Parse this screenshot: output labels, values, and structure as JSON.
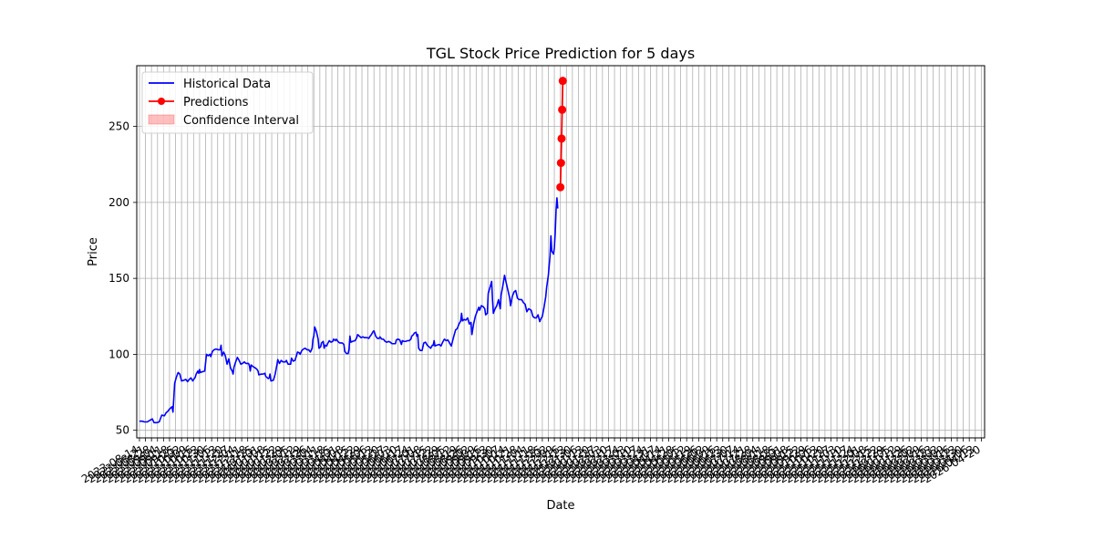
{
  "chart_data": {
    "type": "line",
    "title": "TGL Stock Price Prediction for 5 days",
    "xlabel": "Date",
    "ylabel": "Price",
    "ylim": [
      45,
      290
    ],
    "yticks": [
      50,
      100,
      150,
      200,
      250
    ],
    "grid": true,
    "legend_position": "top-left",
    "series": [
      {
        "name": "Historical Data",
        "color": "#0000ff",
        "points": [
          [
            0,
            56
          ],
          [
            3,
            56
          ],
          [
            6,
            55.5
          ],
          [
            9,
            55.5
          ],
          [
            12,
            56.5
          ],
          [
            15,
            57.5
          ],
          [
            17,
            55
          ],
          [
            20,
            55
          ],
          [
            23,
            55.5
          ],
          [
            24,
            57
          ],
          [
            26,
            60
          ],
          [
            29,
            59.5
          ],
          [
            31,
            61.5
          ],
          [
            33,
            62.5
          ],
          [
            35,
            64
          ],
          [
            38,
            65.5
          ],
          [
            39,
            62
          ],
          [
            41,
            81
          ],
          [
            43,
            85
          ],
          [
            45,
            88
          ],
          [
            47,
            87
          ],
          [
            49,
            82.5
          ],
          [
            52,
            83
          ],
          [
            54,
            83.5
          ],
          [
            56,
            82
          ],
          [
            58,
            83.5
          ],
          [
            60,
            84.5
          ],
          [
            62,
            82.5
          ],
          [
            65,
            85
          ],
          [
            66,
            87
          ],
          [
            68,
            89
          ],
          [
            69,
            87.5
          ],
          [
            70,
            90
          ],
          [
            71,
            88
          ],
          [
            73,
            88.5
          ],
          [
            76,
            89
          ],
          [
            78,
            100
          ],
          [
            80,
            99
          ],
          [
            82,
            100
          ],
          [
            83,
            98.5
          ],
          [
            85,
            102
          ],
          [
            87,
            103
          ],
          [
            89,
            103.5
          ],
          [
            92,
            103
          ],
          [
            94,
            103
          ],
          [
            95,
            106
          ],
          [
            96,
            99
          ],
          [
            98,
            101.5
          ],
          [
            100,
            99
          ],
          [
            102,
            93.5
          ],
          [
            104,
            97
          ],
          [
            106,
            91
          ],
          [
            108,
            89
          ],
          [
            109,
            87
          ],
          [
            110,
            91.5
          ],
          [
            112,
            95
          ],
          [
            114,
            98
          ],
          [
            116,
            96
          ],
          [
            118,
            93.5
          ],
          [
            120,
            94
          ],
          [
            122,
            95
          ],
          [
            124,
            94
          ],
          [
            127,
            94
          ],
          [
            128,
            92.5
          ],
          [
            129,
            89
          ],
          [
            130,
            93
          ],
          [
            132,
            92
          ],
          [
            135,
            91
          ],
          [
            137,
            90
          ],
          [
            138,
            89
          ],
          [
            139,
            86.5
          ],
          [
            142,
            87
          ],
          [
            144,
            87
          ],
          [
            146,
            87.5
          ],
          [
            147,
            85.5
          ],
          [
            150,
            84
          ],
          [
            151,
            84.5
          ],
          [
            152,
            87
          ],
          [
            153,
            82.5
          ],
          [
            156,
            83
          ],
          [
            158,
            87
          ],
          [
            160,
            93
          ],
          [
            161,
            96.5
          ],
          [
            163,
            94
          ],
          [
            165,
            96
          ],
          [
            167,
            95
          ],
          [
            170,
            95
          ],
          [
            171,
            96
          ],
          [
            173,
            93.5
          ],
          [
            176,
            93.5
          ],
          [
            177,
            97.5
          ],
          [
            179,
            95.5
          ],
          [
            181,
            96
          ],
          [
            183,
            99.5
          ],
          [
            184,
            101.5
          ],
          [
            186,
            101
          ],
          [
            187,
            100
          ],
          [
            189,
            102.5
          ],
          [
            191,
            103.5
          ],
          [
            193,
            104
          ],
          [
            195,
            103
          ],
          [
            197,
            103
          ],
          [
            199,
            101.5
          ],
          [
            201,
            104
          ],
          [
            202,
            110
          ],
          [
            203,
            112
          ],
          [
            204,
            118
          ],
          [
            206,
            115
          ],
          [
            208,
            110
          ],
          [
            209,
            104
          ],
          [
            211,
            105
          ],
          [
            212,
            107.5
          ],
          [
            214,
            108.5
          ],
          [
            215,
            104
          ],
          [
            216,
            106
          ],
          [
            218,
            105.5
          ],
          [
            219,
            107
          ],
          [
            221,
            109
          ],
          [
            223,
            108
          ],
          [
            225,
            108.5
          ],
          [
            226,
            110
          ],
          [
            228,
            109
          ],
          [
            229,
            110
          ],
          [
            231,
            108.5
          ],
          [
            233,
            107.5
          ],
          [
            236,
            107.5
          ],
          [
            238,
            106.5
          ],
          [
            239,
            102
          ],
          [
            241,
            100.5
          ],
          [
            243,
            100.5
          ],
          [
            244,
            103.5
          ],
          [
            245,
            112
          ],
          [
            246,
            108
          ],
          [
            248,
            108.5
          ],
          [
            251,
            109
          ],
          [
            253,
            111
          ],
          [
            254,
            113
          ],
          [
            256,
            112
          ],
          [
            258,
            111
          ],
          [
            260,
            111.5
          ],
          [
            262,
            111
          ],
          [
            265,
            111
          ],
          [
            267,
            110.5
          ],
          [
            268,
            111.5
          ],
          [
            270,
            113
          ],
          [
            272,
            115
          ],
          [
            273,
            115.5
          ],
          [
            275,
            112
          ],
          [
            277,
            110.5
          ],
          [
            279,
            110.5
          ],
          [
            280,
            111.5
          ],
          [
            282,
            110
          ],
          [
            284,
            110
          ],
          [
            286,
            108.5
          ],
          [
            288,
            108
          ],
          [
            290,
            108.5
          ],
          [
            292,
            108
          ],
          [
            294,
            107
          ],
          [
            296,
            107
          ],
          [
            298,
            107
          ],
          [
            299,
            109.5
          ],
          [
            301,
            110
          ],
          [
            303,
            109.5
          ],
          [
            305,
            106.5
          ],
          [
            306,
            109
          ],
          [
            308,
            108.5
          ],
          [
            310,
            108.5
          ],
          [
            312,
            109
          ],
          [
            314,
            109
          ],
          [
            316,
            110
          ],
          [
            317,
            112
          ],
          [
            319,
            113
          ],
          [
            320,
            114
          ],
          [
            322,
            114.5
          ],
          [
            323,
            112
          ],
          [
            324,
            113
          ],
          [
            325,
            104
          ],
          [
            327,
            102.5
          ],
          [
            329,
            102.5
          ],
          [
            331,
            107.5
          ],
          [
            333,
            108
          ],
          [
            335,
            106
          ],
          [
            337,
            105
          ],
          [
            339,
            104
          ],
          [
            341,
            106
          ],
          [
            342,
            106
          ],
          [
            343,
            109
          ],
          [
            344,
            105.5
          ],
          [
            346,
            106
          ],
          [
            349,
            106.5
          ],
          [
            351,
            105.5
          ],
          [
            353,
            108
          ],
          [
            355,
            110
          ],
          [
            357,
            109
          ],
          [
            359,
            109.5
          ],
          [
            361,
            107.5
          ],
          [
            363,
            105.5
          ],
          [
            366,
            112
          ],
          [
            368,
            116
          ],
          [
            370,
            117
          ],
          [
            372,
            120
          ],
          [
            374,
            122
          ],
          [
            375,
            127
          ],
          [
            376,
            122
          ],
          [
            378,
            123
          ],
          [
            380,
            122.5
          ],
          [
            382,
            124
          ],
          [
            384,
            120
          ],
          [
            386,
            121
          ],
          [
            387,
            113
          ],
          [
            389,
            120
          ],
          [
            391,
            125
          ],
          [
            393,
            128
          ],
          [
            395,
            131
          ],
          [
            396,
            129
          ],
          [
            398,
            132
          ],
          [
            400,
            131.5
          ],
          [
            402,
            130
          ],
          [
            403,
            126
          ],
          [
            405,
            127
          ],
          [
            406,
            140
          ],
          [
            408,
            144
          ],
          [
            410,
            148
          ],
          [
            411,
            136
          ],
          [
            412,
            127
          ],
          [
            414,
            130
          ],
          [
            416,
            132
          ],
          [
            417,
            134
          ],
          [
            418,
            136
          ],
          [
            420,
            130
          ],
          [
            421,
            139
          ],
          [
            423,
            145
          ],
          [
            425,
            152
          ],
          [
            427,
            147
          ],
          [
            429,
            142
          ],
          [
            431,
            137
          ],
          [
            432,
            132
          ],
          [
            434,
            138
          ],
          [
            436,
            141
          ],
          [
            438,
            142
          ],
          [
            440,
            137
          ],
          [
            442,
            136
          ],
          [
            445,
            136
          ],
          [
            447,
            134
          ],
          [
            449,
            133
          ],
          [
            451,
            128
          ],
          [
            453,
            130
          ],
          [
            456,
            129
          ],
          [
            458,
            125
          ],
          [
            460,
            124
          ],
          [
            462,
            124
          ],
          [
            464,
            126
          ],
          [
            466,
            121.5
          ],
          [
            467,
            123
          ],
          [
            469,
            125
          ],
          [
            471,
            131
          ],
          [
            473,
            138
          ],
          [
            474,
            144
          ],
          [
            476,
            152
          ],
          [
            478,
            165
          ],
          [
            479,
            178
          ],
          [
            480,
            168
          ],
          [
            482,
            166
          ],
          [
            483,
            170
          ],
          [
            484,
            180
          ],
          [
            485,
            195
          ],
          [
            486,
            203
          ],
          [
            487,
            196
          ]
        ]
      },
      {
        "name": "Predictions",
        "color": "#ff0000",
        "points": [
          [
            490,
            210
          ],
          [
            490.7,
            226
          ],
          [
            491.4,
            242
          ],
          [
            492.1,
            261
          ],
          [
            492.8,
            280
          ]
        ]
      },
      {
        "name": "Confidence Interval",
        "color": "#ffbfbf"
      }
    ],
    "x_tick_labels": [
      "2023-08-14",
      "2023-08-21",
      "2023-08-28",
      "2023-09-04",
      "2023-09-11",
      "2023-09-18",
      "2023-09-25",
      "2023-10-02",
      "2023-10-09",
      "2023-10-16",
      "2023-10-23",
      "2023-10-30",
      "2023-11-06",
      "2023-11-13",
      "2023-11-20",
      "2023-11-27",
      "2023-12-04",
      "2023-12-11",
      "2023-12-18",
      "2023-12-25",
      "2024-01-01",
      "2024-01-08",
      "2024-01-15",
      "2024-01-22",
      "2024-01-29",
      "2024-02-05",
      "2024-02-12",
      "2024-02-19",
      "2024-02-26",
      "2024-03-04",
      "2024-03-11",
      "2024-03-18",
      "2024-03-25",
      "2024-04-01",
      "2024-04-08",
      "2024-04-15",
      "2024-04-22",
      "2024-04-29",
      "2024-05-06",
      "2024-05-13",
      "2024-05-20",
      "2024-05-27",
      "2024-06-03",
      "2024-06-10",
      "2024-06-17",
      "2024-06-24",
      "2024-07-01",
      "2024-07-08",
      "2024-07-15",
      "2024-07-22",
      "2024-07-29",
      "2024-08-05",
      "2024-08-12",
      "2024-08-19",
      "2024-08-26",
      "2024-09-02",
      "2024-09-09",
      "2024-09-16",
      "2024-09-23",
      "2024-09-30",
      "2024-10-07",
      "2024-10-14",
      "2024-10-21",
      "2024-10-28",
      "2024-11-04",
      "2024-11-11",
      "2024-11-18",
      "2024-11-25",
      "2024-12-02",
      "2024-12-09",
      "2024-12-16",
      "2024-12-23",
      "2024-12-30",
      "2025-01-06",
      "2025-01-13",
      "2025-01-20",
      "2025-01-27",
      "2025-02-03",
      "2025-02-10",
      "2025-02-17",
      "2025-02-24",
      "2025-03-03",
      "2025-03-10",
      "2025-03-17",
      "2025-03-24",
      "2025-03-31",
      "2025-04-07",
      "2025-04-14",
      "2025-04-21",
      "2025-04-28",
      "2025-05-05",
      "2025-05-12",
      "2025-05-19",
      "2025-05-26",
      "2025-06-02",
      "2025-06-09",
      "2025-06-16",
      "2025-06-23",
      "2025-06-30",
      "2025-07-07",
      "2025-07-14",
      "2025-07-21",
      "2025-07-28",
      "2025-08-04",
      "2025-08-11",
      "2025-08-18",
      "2025-08-25",
      "2025-09-01",
      "2025-09-08",
      "2025-09-15",
      "2025-09-22",
      "2025-09-29",
      "2025-10-06",
      "2025-10-13",
      "2025-10-20",
      "2025-10-27",
      "2025-11-03",
      "2025-11-10",
      "2025-11-17",
      "2025-11-24",
      "2025-12-01",
      "2025-12-08",
      "2025-12-15",
      "2025-12-22",
      "2025-12-29",
      "2026-01-05",
      "2026-01-12",
      "2026-01-19",
      "2026-01-26",
      "2026-02-02",
      "2026-02-09",
      "2026-02-16",
      "2026-02-23",
      "2026-03-02",
      "2026-03-09",
      "2026-03-16",
      "2026-03-23",
      "2026-03-30",
      "2026-04-06",
      "2026-04-13",
      "2026-04-20"
    ]
  }
}
